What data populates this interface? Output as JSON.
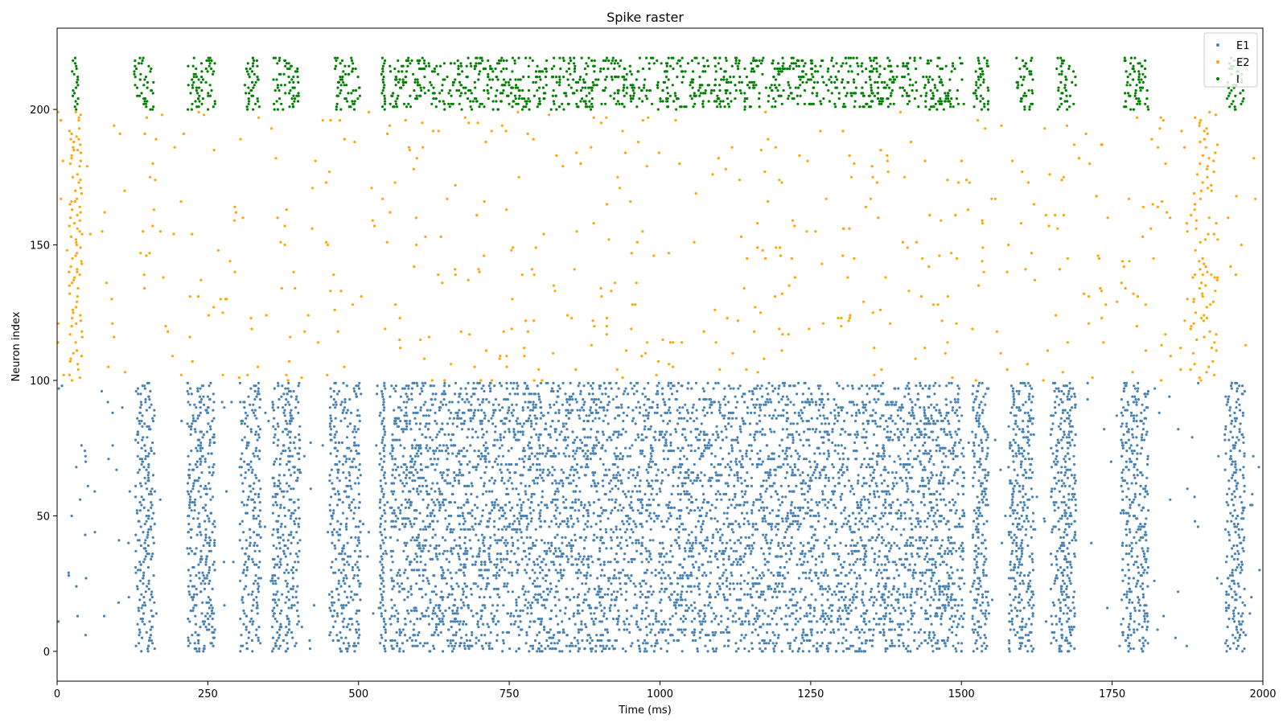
{
  "chart_data": {
    "type": "scatter",
    "title": "Spike raster",
    "xlabel": "Time (ms)",
    "ylabel": "Neuron index",
    "xlim": [
      0,
      2000
    ],
    "ylim": [
      -11,
      230
    ],
    "x_ticks": [
      0,
      250,
      500,
      750,
      1000,
      1250,
      1500,
      1750,
      2000
    ],
    "y_ticks": [
      0,
      50,
      100,
      150,
      200
    ],
    "grid": false,
    "legend_position": "top-right",
    "series": [
      {
        "name": "E1",
        "color": "#4682b4",
        "neuron_range": [
          0,
          99
        ],
        "bursts": [
          {
            "t_start": 130,
            "t_end": 162
          },
          {
            "t_start": 216,
            "t_end": 262
          },
          {
            "t_start": 303,
            "t_end": 338
          },
          {
            "t_start": 357,
            "t_end": 404
          },
          {
            "t_start": 452,
            "t_end": 505
          },
          {
            "t_start": 535,
            "t_end": 545
          },
          {
            "t_start": 552,
            "t_end": 1505
          },
          {
            "t_start": 1518,
            "t_end": 1545
          },
          {
            "t_start": 1578,
            "t_end": 1620
          },
          {
            "t_start": 1648,
            "t_end": 1690
          },
          {
            "t_start": 1765,
            "t_end": 1810
          },
          {
            "t_start": 1938,
            "t_end": 1970
          }
        ],
        "background_rate": "sparse"
      },
      {
        "name": "E2",
        "color": "#ffa500",
        "neuron_range": [
          100,
          199
        ],
        "bursts": [
          {
            "t_start": 20,
            "t_end": 42
          },
          {
            "t_start": 1880,
            "t_end": 1925
          }
        ],
        "background_rate": "sparse"
      },
      {
        "name": "I",
        "color": "#008000",
        "neuron_range": [
          200,
          219
        ],
        "bursts": [
          {
            "t_start": 25,
            "t_end": 35
          },
          {
            "t_start": 128,
            "t_end": 160
          },
          {
            "t_start": 216,
            "t_end": 262
          },
          {
            "t_start": 310,
            "t_end": 336
          },
          {
            "t_start": 358,
            "t_end": 402
          },
          {
            "t_start": 460,
            "t_end": 505
          },
          {
            "t_start": 538,
            "t_end": 545
          },
          {
            "t_start": 552,
            "t_end": 1505
          },
          {
            "t_start": 1520,
            "t_end": 1545
          },
          {
            "t_start": 1590,
            "t_end": 1620
          },
          {
            "t_start": 1658,
            "t_end": 1690
          },
          {
            "t_start": 1770,
            "t_end": 1810
          },
          {
            "t_start": 1940,
            "t_end": 1968
          }
        ]
      }
    ]
  }
}
